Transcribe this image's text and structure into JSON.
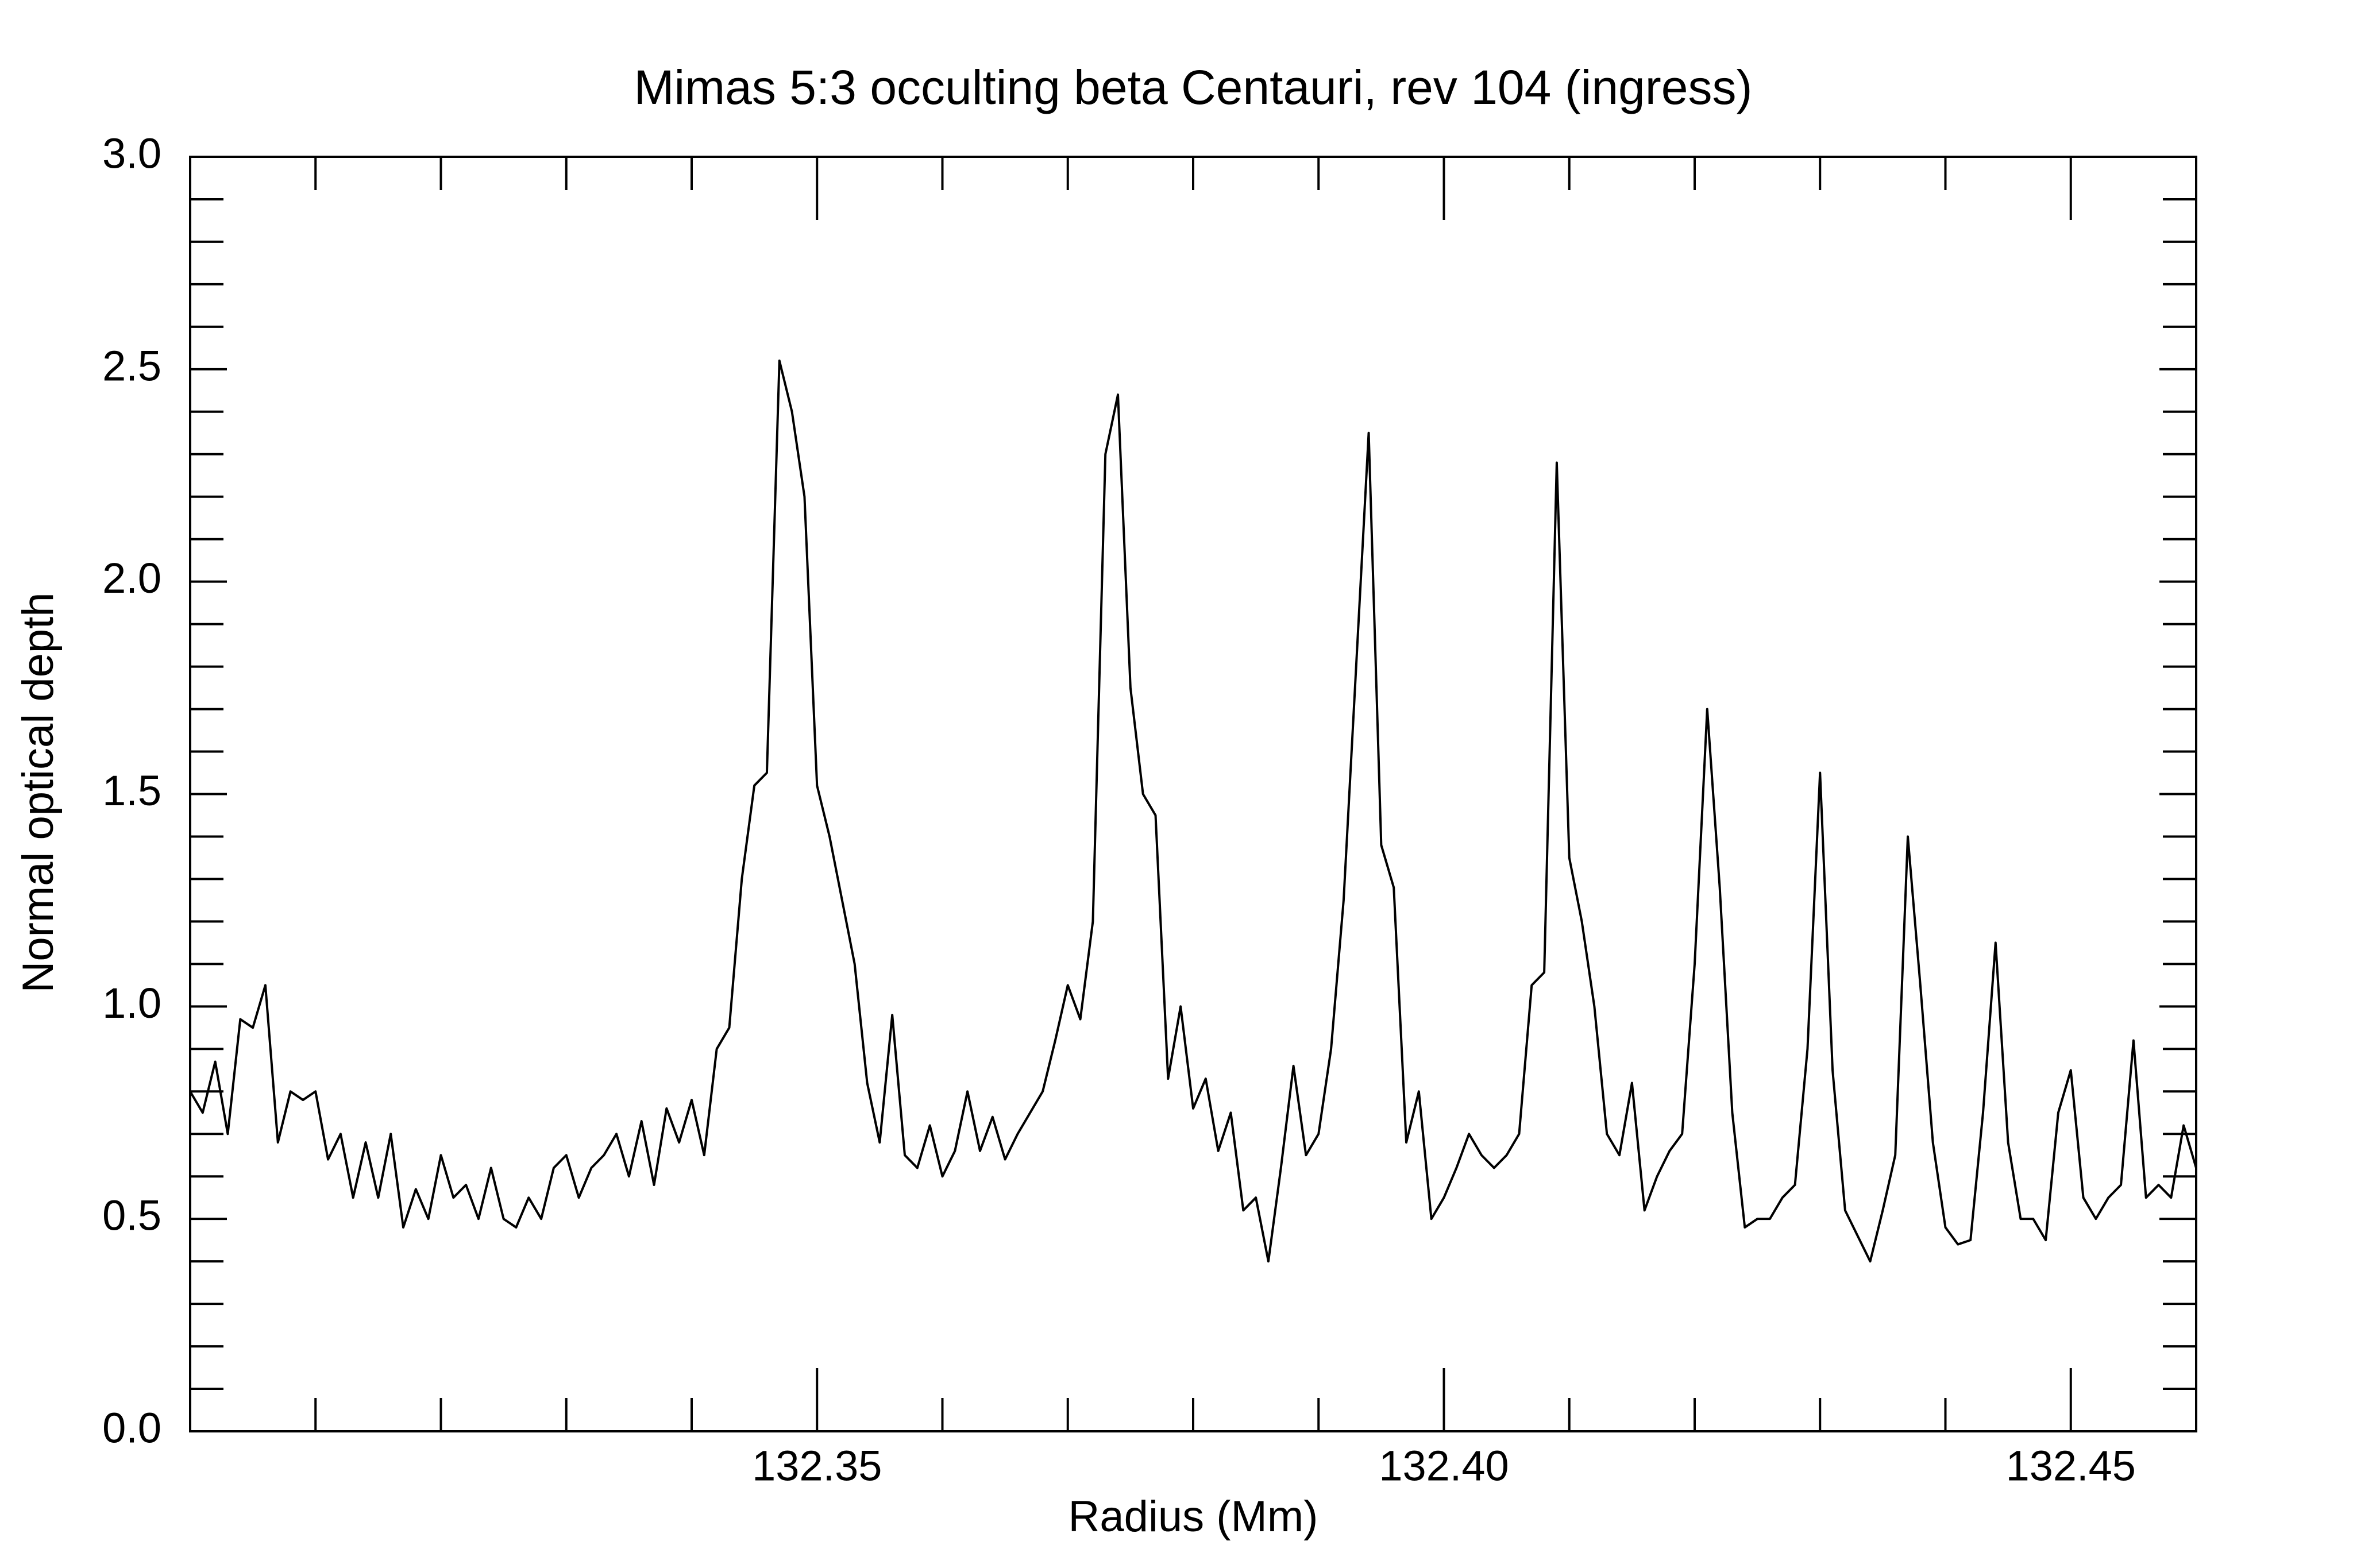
{
  "chart_data": {
    "type": "line",
    "title": "Mimas 5:3 occulting beta Centauri, rev 104 (ingress)",
    "xlabel": "Radius (Mm)",
    "ylabel": "Normal optical depth",
    "color": "#000000",
    "xlim": [
      132.3,
      132.46
    ],
    "ylim": [
      0,
      3
    ],
    "xticks": [
      132.35,
      {
        "value": 132.4,
        "label": "132.40"
      },
      132.45
    ],
    "xminorticks": [
      132.31,
      132.32,
      132.33,
      132.34,
      132.36,
      132.37,
      132.38,
      132.39,
      132.41,
      132.42,
      132.43,
      132.44,
      132.46
    ],
    "yticks": [
      {
        "value": 0,
        "label": "0.0"
      },
      0.5,
      {
        "value": 1,
        "label": "1.0"
      },
      1.5,
      {
        "value": 2,
        "label": "2.0"
      },
      2.5,
      {
        "value": 3,
        "label": "3.0"
      }
    ],
    "yminorticks": [
      0.1,
      0.2,
      0.3,
      0.4,
      0.6,
      0.7,
      0.8,
      0.9,
      1.1,
      1.2,
      1.3,
      1.4,
      1.6,
      1.7,
      1.8,
      1.9,
      2.1,
      2.2,
      2.3,
      2.4,
      2.6,
      2.7,
      2.8,
      2.9
    ],
    "x": [
      132.3,
      132.301,
      132.302,
      132.303,
      132.304,
      132.305,
      132.306,
      132.307,
      132.308,
      132.309,
      132.31,
      132.311,
      132.312,
      132.313,
      132.314,
      132.315,
      132.316,
      132.317,
      132.318,
      132.319,
      132.32,
      132.321,
      132.322,
      132.323,
      132.324,
      132.325,
      132.326,
      132.327,
      132.328,
      132.329,
      132.33,
      132.331,
      132.332,
      132.333,
      132.334,
      132.335,
      132.336,
      132.337,
      132.338,
      132.339,
      132.34,
      132.341,
      132.342,
      132.343,
      132.344,
      132.345,
      132.346,
      132.347,
      132.348,
      132.349,
      132.35,
      132.351,
      132.352,
      132.353,
      132.354,
      132.355,
      132.356,
      132.357,
      132.358,
      132.359,
      132.36,
      132.361,
      132.362,
      132.363,
      132.364,
      132.365,
      132.366,
      132.367,
      132.368,
      132.369,
      132.37,
      132.371,
      132.372,
      132.373,
      132.374,
      132.375,
      132.376,
      132.377,
      132.378,
      132.379,
      132.38,
      132.381,
      132.382,
      132.383,
      132.384,
      132.385,
      132.386,
      132.387,
      132.388,
      132.389,
      132.39,
      132.391,
      132.392,
      132.393,
      132.394,
      132.395,
      132.396,
      132.397,
      132.398,
      132.399,
      132.4,
      132.401,
      132.402,
      132.403,
      132.404,
      132.405,
      132.406,
      132.407,
      132.408,
      132.409,
      132.41,
      132.411,
      132.412,
      132.413,
      132.414,
      132.415,
      132.416,
      132.417,
      132.418,
      132.419,
      132.42,
      132.421,
      132.422,
      132.423,
      132.424,
      132.425,
      132.426,
      132.427,
      132.428,
      132.429,
      132.43,
      132.431,
      132.432,
      132.433,
      132.434,
      132.435,
      132.436,
      132.437,
      132.438,
      132.439,
      132.44,
      132.441,
      132.442,
      132.443,
      132.444,
      132.445,
      132.446,
      132.447,
      132.448,
      132.449,
      132.45,
      132.451,
      132.452,
      132.453,
      132.454,
      132.455,
      132.456,
      132.457,
      132.458,
      132.459,
      132.46
    ],
    "values": [
      0.8,
      0.75,
      0.87,
      0.7,
      0.97,
      0.95,
      1.05,
      0.68,
      0.8,
      0.78,
      0.8,
      0.64,
      0.7,
      0.55,
      0.68,
      0.55,
      0.7,
      0.48,
      0.57,
      0.5,
      0.65,
      0.55,
      0.58,
      0.5,
      0.62,
      0.5,
      0.48,
      0.55,
      0.5,
      0.62,
      0.65,
      0.55,
      0.62,
      0.65,
      0.7,
      0.6,
      0.73,
      0.58,
      0.76,
      0.68,
      0.78,
      0.65,
      0.9,
      0.95,
      1.3,
      1.52,
      1.55,
      2.52,
      2.4,
      2.2,
      1.52,
      1.4,
      1.25,
      1.1,
      0.82,
      0.68,
      0.98,
      0.65,
      0.62,
      0.72,
      0.6,
      0.66,
      0.8,
      0.66,
      0.74,
      0.64,
      0.7,
      0.75,
      0.8,
      0.92,
      1.05,
      0.97,
      1.2,
      2.3,
      2.44,
      1.75,
      1.5,
      1.45,
      0.83,
      1.0,
      0.76,
      0.83,
      0.66,
      0.75,
      0.52,
      0.55,
      0.4,
      0.62,
      0.86,
      0.65,
      0.7,
      0.9,
      1.25,
      1.8,
      2.35,
      1.38,
      1.28,
      0.68,
      0.8,
      0.5,
      0.55,
      0.62,
      0.7,
      0.65,
      0.62,
      0.65,
      0.7,
      1.05,
      1.08,
      2.28,
      1.35,
      1.2,
      1.0,
      0.7,
      0.65,
      0.82,
      0.52,
      0.6,
      0.66,
      0.7,
      1.1,
      1.7,
      1.28,
      0.75,
      0.48,
      0.5,
      0.5,
      0.55,
      0.58,
      0.9,
      1.55,
      0.85,
      0.52,
      0.46,
      0.4,
      0.52,
      0.65,
      1.4,
      1.05,
      0.68,
      0.48,
      0.44,
      0.45,
      0.75,
      1.15,
      0.68,
      0.5,
      0.5,
      0.45,
      0.75,
      0.85,
      0.55,
      0.5,
      0.55,
      0.58,
      0.92,
      0.55,
      0.58,
      0.55,
      0.72,
      0.62
    ]
  }
}
